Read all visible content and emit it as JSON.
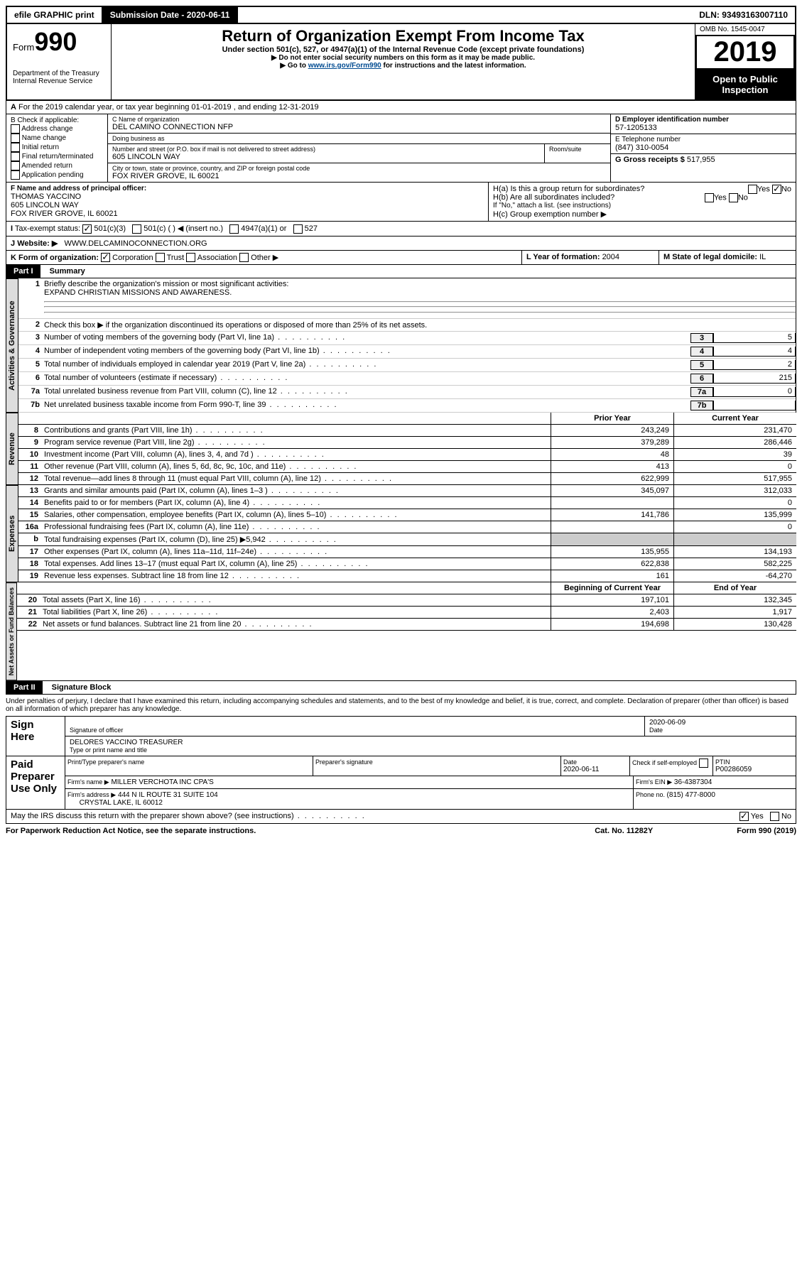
{
  "header": {
    "efile": "efile GRAPHIC print",
    "submission_label": "Submission Date - ",
    "submission_date": "2020-06-11",
    "dln_label": "DLN: ",
    "dln": "93493163007110"
  },
  "form": {
    "form_label": "Form",
    "form_no": "990",
    "title": "Return of Organization Exempt From Income Tax",
    "subtitle": "Under section 501(c), 527, or 4947(a)(1) of the Internal Revenue Code (except private foundations)",
    "note1": "▶ Do not enter social security numbers on this form as it may be made public.",
    "note2_pre": "▶ Go to ",
    "note2_link": "www.irs.gov/Form990",
    "note2_post": " for instructions and the latest information.",
    "dept": "Department of the Treasury\nInternal Revenue Service",
    "omb_label": "OMB No. 1545-0047",
    "year": "2019",
    "openpub": "Open to Public Inspection"
  },
  "A": {
    "text": "For the 2019 calendar year, or tax year beginning 01-01-2019   , and ending 12-31-2019"
  },
  "B": {
    "title": "B Check if applicable:",
    "items": [
      "Address change",
      "Name change",
      "Initial return",
      "Final return/terminated",
      "Amended return",
      "Application pending"
    ]
  },
  "C": {
    "name_label": "C Name of organization",
    "name": "DEL CAMINO CONNECTION NFP",
    "dba_label": "Doing business as",
    "dba": "",
    "addr_label": "Number and street (or P.O. box if mail is not delivered to street address)",
    "room_label": "Room/suite",
    "addr": "605 LINCOLN WAY",
    "city_label": "City or town, state or province, country, and ZIP or foreign postal code",
    "city": "FOX RIVER GROVE, IL  60021"
  },
  "D": {
    "label": "D Employer identification number",
    "value": "57-1205133"
  },
  "E": {
    "label": "E Telephone number",
    "value": "(847) 310-0054"
  },
  "G": {
    "label": "G Gross receipts $ ",
    "value": "517,955"
  },
  "F": {
    "label": "F  Name and address of principal officer:",
    "name": "THOMAS YACCINO",
    "addr1": "605 LINCOLN WAY",
    "addr2": "FOX RIVER GROVE, IL  60021"
  },
  "H": {
    "a": "H(a)  Is this a group return for subordinates?",
    "a_yes": "Yes",
    "a_no": "No",
    "b": "H(b)  Are all subordinates included?",
    "b_yes": "Yes",
    "b_no": "No",
    "b_note": "If \"No,\" attach a list. (see instructions)",
    "c": "H(c)  Group exemption number ▶"
  },
  "I": {
    "label": "Tax-exempt status:",
    "o1": "501(c)(3)",
    "o2": "501(c) (  ) ◀ (insert no.)",
    "o3": "4947(a)(1) or",
    "o4": "527"
  },
  "J": {
    "label": "Website: ▶",
    "value": "WWW.DELCAMINOCONNECTION.ORG"
  },
  "K": {
    "label": "K Form of organization:",
    "o": [
      "Corporation",
      "Trust",
      "Association",
      "Other ▶"
    ]
  },
  "L": {
    "label": "L Year of formation: ",
    "value": "2004"
  },
  "M": {
    "label": "M State of legal domicile: ",
    "value": "IL"
  },
  "part1": {
    "bar": "Part I",
    "title": "Summary",
    "l1": "Briefly describe the organization's mission or most significant activities:",
    "l1v": "EXPAND CHRISTIAN MISSIONS AND AWARENESS.",
    "l2": "Check this box ▶      if the organization discontinued its operations or disposed of more than 25% of its net assets.",
    "lines": [
      {
        "n": "3",
        "t": "Number of voting members of the governing body (Part VI, line 1a)",
        "v": "5"
      },
      {
        "n": "4",
        "t": "Number of independent voting members of the governing body (Part VI, line 1b)",
        "v": "4"
      },
      {
        "n": "5",
        "t": "Total number of individuals employed in calendar year 2019 (Part V, line 2a)",
        "v": "2"
      },
      {
        "n": "6",
        "t": "Total number of volunteers (estimate if necessary)",
        "v": "215"
      },
      {
        "n": "7a",
        "t": "Total unrelated business revenue from Part VIII, column (C), line 12",
        "v": "0"
      },
      {
        "n": "7b",
        "t": "Net unrelated business taxable income from Form 990-T, line 39",
        "v": ""
      }
    ]
  },
  "fin": {
    "prior": "Prior Year",
    "current": "Current Year",
    "boy": "Beginning of Current Year",
    "eoy": "End of Year",
    "revenue_label": "Revenue",
    "expenses_label": "Expenses",
    "gov_label": "Activities & Governance",
    "net_label": "Net Assets or Fund Balances",
    "rows": [
      {
        "n": "8",
        "t": "Contributions and grants (Part VIII, line 1h)",
        "p": "243,249",
        "c": "231,470"
      },
      {
        "n": "9",
        "t": "Program service revenue (Part VIII, line 2g)",
        "p": "379,289",
        "c": "286,446"
      },
      {
        "n": "10",
        "t": "Investment income (Part VIII, column (A), lines 3, 4, and 7d )",
        "p": "48",
        "c": "39"
      },
      {
        "n": "11",
        "t": "Other revenue (Part VIII, column (A), lines 5, 6d, 8c, 9c, 10c, and 11e)",
        "p": "413",
        "c": "0"
      },
      {
        "n": "12",
        "t": "Total revenue—add lines 8 through 11 (must equal Part VIII, column (A), line 12)",
        "p": "622,999",
        "c": "517,955"
      }
    ],
    "exp": [
      {
        "n": "13",
        "t": "Grants and similar amounts paid (Part IX, column (A), lines 1–3 )",
        "p": "345,097",
        "c": "312,033"
      },
      {
        "n": "14",
        "t": "Benefits paid to or for members (Part IX, column (A), line 4)",
        "p": "",
        "c": "0"
      },
      {
        "n": "15",
        "t": "Salaries, other compensation, employee benefits (Part IX, column (A), lines 5–10)",
        "p": "141,786",
        "c": "135,999"
      },
      {
        "n": "16a",
        "t": "Professional fundraising fees (Part IX, column (A), line 11e)",
        "p": "",
        "c": "0"
      },
      {
        "n": "b",
        "t": "Total fundraising expenses (Part IX, column (D), line 25) ▶5,942",
        "p": "—",
        "c": "—"
      },
      {
        "n": "17",
        "t": "Other expenses (Part IX, column (A), lines 11a–11d, 11f–24e)",
        "p": "135,955",
        "c": "134,193"
      },
      {
        "n": "18",
        "t": "Total expenses. Add lines 13–17 (must equal Part IX, column (A), line 25)",
        "p": "622,838",
        "c": "582,225"
      },
      {
        "n": "19",
        "t": "Revenue less expenses. Subtract line 18 from line 12",
        "p": "161",
        "c": "-64,270"
      }
    ],
    "net": [
      {
        "n": "20",
        "t": "Total assets (Part X, line 16)",
        "p": "197,101",
        "c": "132,345"
      },
      {
        "n": "21",
        "t": "Total liabilities (Part X, line 26)",
        "p": "2,403",
        "c": "1,917"
      },
      {
        "n": "22",
        "t": "Net assets or fund balances. Subtract line 21 from line 20",
        "p": "194,698",
        "c": "130,428"
      }
    ]
  },
  "part2": {
    "bar": "Part II",
    "title": "Signature Block",
    "perjury": "Under penalties of perjury, I declare that I have examined this return, including accompanying schedules and statements, and to the best of my knowledge and belief, it is true, correct, and complete. Declaration of preparer (other than officer) is based on all information of which preparer has any knowledge.",
    "sign_here": "Sign Here",
    "sig_officer": "Signature of officer",
    "date": "2020-06-09",
    "date_label": "Date",
    "name_title": "DELORES YACCINO  TREASURER",
    "name_title_label": "Type or print name and title",
    "paid": "Paid Preparer Use Only",
    "prep_name_label": "Print/Type preparer's name",
    "prep_sig_label": "Preparer's signature",
    "prep_date_label": "Date",
    "prep_date": "2020-06-11",
    "check_self": "Check        if self-employed",
    "ptin_label": "PTIN",
    "ptin": "P00286059",
    "firm_name_label": "Firm's name    ▶",
    "firm_name": "MILLER VERCHOTA INC CPA'S",
    "firm_ein_label": "Firm's EIN ▶",
    "firm_ein": "36-4387304",
    "firm_addr_label": "Firm's address ▶",
    "firm_addr1": "444 N IL ROUTE 31 SUITE 104",
    "firm_addr2": "CRYSTAL LAKE, IL  60012",
    "firm_phone_label": "Phone no. ",
    "firm_phone": "(815) 477-8000",
    "discuss": "May the IRS discuss this return with the preparer shown above? (see instructions)",
    "d_yes": "Yes",
    "d_no": "No"
  },
  "footer": {
    "pra": "For Paperwork Reduction Act Notice, see the separate instructions.",
    "cat": "Cat. No. 11282Y",
    "form": "Form 990 (2019)"
  }
}
